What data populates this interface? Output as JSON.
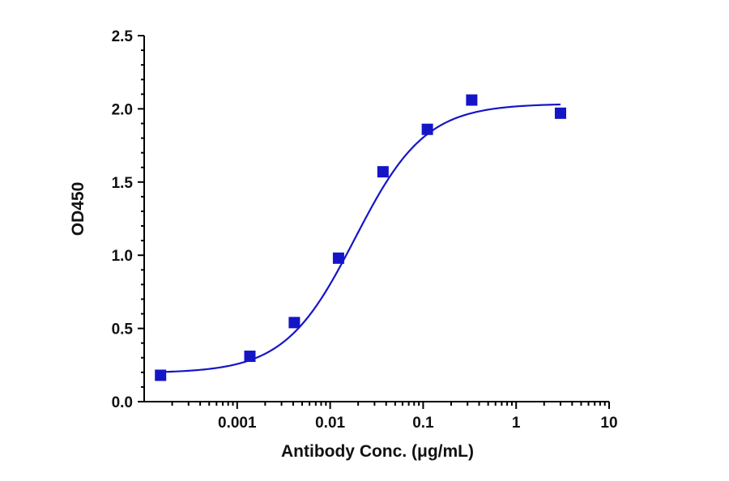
{
  "chart_data": {
    "type": "scatter",
    "xlabel": "Antibody Conc. (μg/mL)",
    "ylabel": "OD450",
    "x_scale": "log",
    "xlim": [
      0.0001,
      10
    ],
    "ylim": [
      0,
      2.5
    ],
    "x_ticks": [
      "0.001",
      "0.01",
      "0.1",
      "1",
      "10"
    ],
    "y_ticks": [
      "0.0",
      "0.5",
      "1.0",
      "1.5",
      "2.0",
      "2.5"
    ],
    "grid": false,
    "legend": "none",
    "series": [
      {
        "marker": "square",
        "color": "#1515c8",
        "x": [
          0.00015,
          0.00137,
          0.00412,
          0.0123,
          0.037,
          0.111,
          0.333,
          3
        ],
        "y": [
          0.18,
          0.31,
          0.54,
          0.98,
          1.57,
          1.86,
          2.06,
          1.97
        ]
      }
    ],
    "fit_curve": {
      "type": "4PL",
      "color": "#1515c8",
      "bottom": 0.195,
      "top": 2.035,
      "ec50": 0.0185,
      "hill": 1.15,
      "x_range": [
        0.00015,
        3
      ]
    }
  }
}
